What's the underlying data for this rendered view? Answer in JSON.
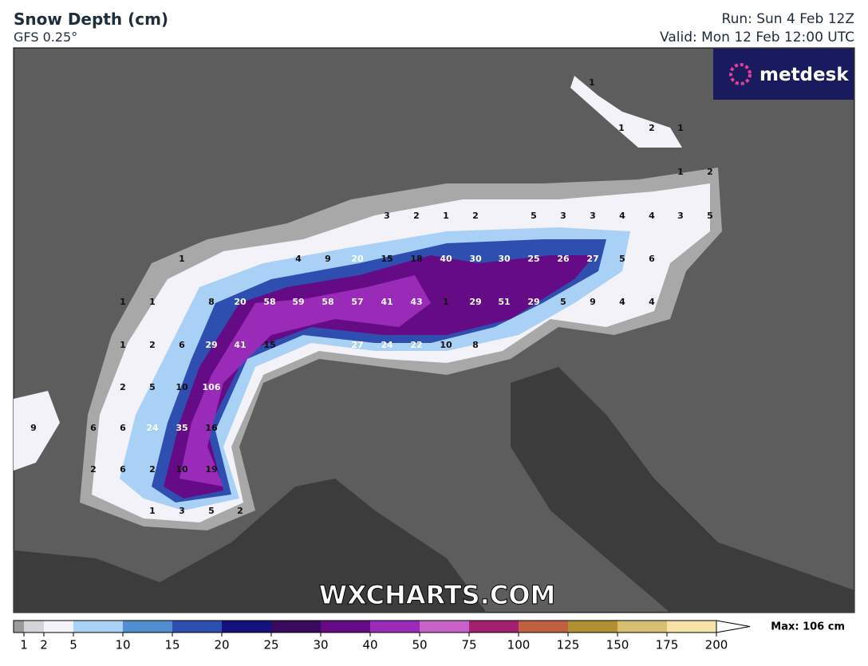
{
  "header": {
    "title": "Snow Depth (cm)",
    "model": "GFS 0.25°",
    "run": "Run: Sun 4 Feb 12Z",
    "valid": "Valid: Mon 12 Feb 12:00 UTC"
  },
  "logo": "metdesk",
  "watermark": "WXCHARTS.COM",
  "map": {
    "labels": [
      1,
      1,
      2,
      1,
      1,
      2,
      3,
      2,
      1,
      2,
      5,
      3,
      3,
      4,
      4,
      3,
      5,
      1,
      4,
      9,
      20,
      15,
      18,
      40,
      30,
      30,
      25,
      26,
      27,
      5,
      6,
      1,
      1,
      8,
      20,
      58,
      59,
      58,
      57,
      41,
      43,
      1,
      29,
      51,
      29,
      5,
      9,
      4,
      4,
      1,
      2,
      6,
      29,
      41,
      15,
      27,
      24,
      22,
      10,
      8,
      2,
      5,
      10,
      106,
      9,
      6,
      6,
      24,
      35,
      16,
      2,
      6,
      2,
      10,
      19,
      1,
      3,
      5,
      2
    ]
  },
  "legend": {
    "ticks": [
      1,
      2,
      5,
      10,
      15,
      20,
      25,
      30,
      40,
      50,
      75,
      100,
      125,
      150,
      175,
      200
    ],
    "colors": [
      "#9b9b9b",
      "#d4d4d8",
      "#f2f2f8",
      "#a9d0f5",
      "#4f8fd0",
      "#2f4fb0",
      "#14107e",
      "#380a5e",
      "#650b86",
      "#9a2ab8",
      "#c862c8",
      "#a2206e",
      "#c06040",
      "#b09030",
      "#d6bf70",
      "#f6e2a6"
    ],
    "max": "Max: 106 cm"
  }
}
